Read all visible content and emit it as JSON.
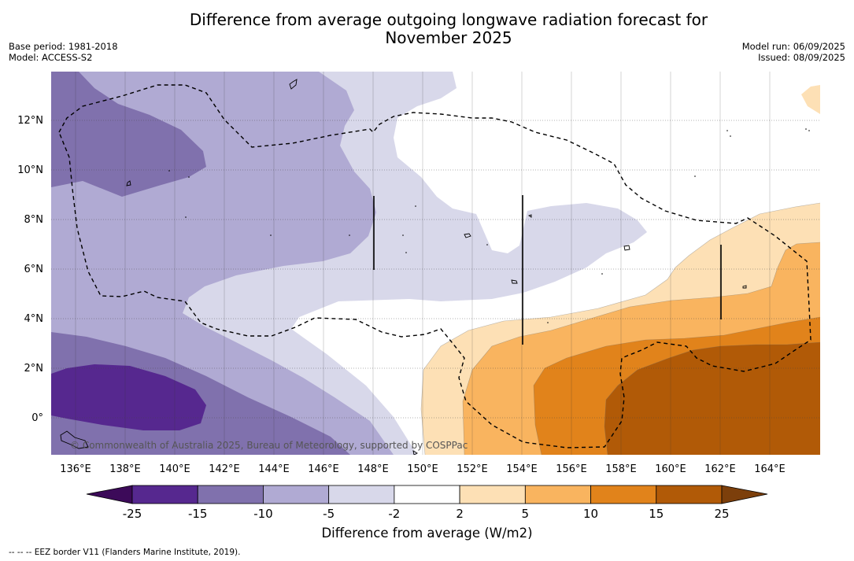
{
  "title_line1": "Difference from average outgoing longwave radiation forecast for",
  "title_line2": "November 2025",
  "base_period": "Base period: 1981-2018",
  "model": "Model: ACCESS-S2",
  "model_run": "Model run: 06/09/2025",
  "issued": "Issued: 08/09/2025",
  "lat_labels": [
    "12°N",
    "10°N",
    "8°N",
    "6°N",
    "4°N",
    "2°N",
    "0°"
  ],
  "lon_labels": [
    "136°E",
    "138°E",
    "140°E",
    "142°E",
    "144°E",
    "146°E",
    "148°E",
    "150°E",
    "152°E",
    "154°E",
    "156°E",
    "158°E",
    "160°E",
    "162°E",
    "164°E"
  ],
  "copyright": "© Commonwealth of Australia 2025, Bureau of Meteorology, supported by COSPPac",
  "colorbar": {
    "ticks": [
      "-25",
      "-15",
      "-10",
      "-5",
      "-2",
      "2",
      "5",
      "10",
      "15",
      "25"
    ],
    "colors": [
      "#56288f",
      "#8071ad",
      "#b0aad3",
      "#d8d8ea",
      "#ffffff",
      "#fde0b5",
      "#f9b45f",
      "#e1831b",
      "#b15a07"
    ],
    "extend_low_color": "#3c0a59",
    "extend_high_color": "#7c3f0b",
    "title": "Difference from average (W/m2)"
  },
  "footnote": "--  --  -- EEZ border V11 (Flanders Marine Institute, 2019)."
}
